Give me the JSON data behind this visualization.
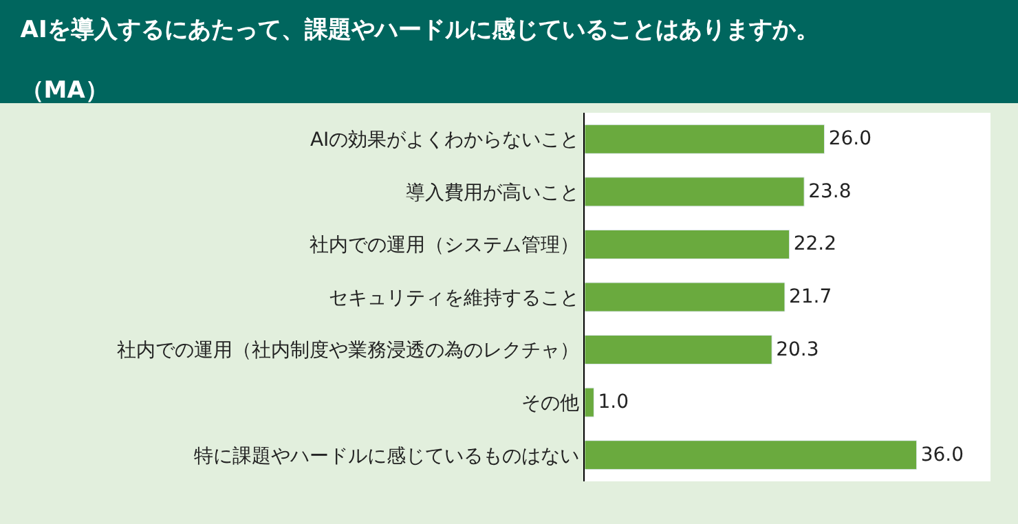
{
  "chart_data": {
    "type": "bar",
    "orientation": "horizontal",
    "title": "AIを導入するにあたって、課題やハードルに感じていることはありますか。",
    "subtitle": "（MA）",
    "categories": [
      "AIの効果がよくわからないこと",
      "導入費用が高いこと",
      "社内での運用（システム管理）",
      "セキュリティを維持すること",
      "社内での運用（社内制度や業務浸透の為のレクチャ）",
      "その他",
      "特に課題やハードルに感じているものはない"
    ],
    "values": [
      26.0,
      23.8,
      22.2,
      21.7,
      20.3,
      1.0,
      36.0
    ],
    "value_labels": [
      "26.0",
      "23.8",
      "22.2",
      "21.7",
      "20.3",
      "1.0",
      "36.0"
    ],
    "color": "#6aaa3e",
    "xlim": [
      0,
      44
    ],
    "tick_labels": "y",
    "legend": false
  }
}
